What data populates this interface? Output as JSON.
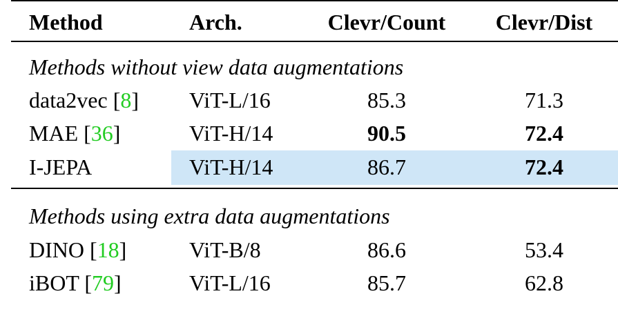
{
  "table": {
    "header": [
      "Method",
      "Arch.",
      "Clevr/Count",
      "Clevr/Dist"
    ],
    "sections": [
      {
        "title": "Methods without view data augmentations",
        "rows": [
          {
            "method": "data2vec",
            "ref": 8,
            "arch": "ViT-L/16",
            "count": 85.3,
            "dist": 71.3
          },
          {
            "method": "MAE",
            "ref": 36,
            "arch": "ViT-H/14",
            "count": 90.5,
            "dist": 72.4
          },
          {
            "method": "I-JEPA",
            "arch": "ViT-H/14",
            "count": 86.7,
            "dist": 72.4
          }
        ]
      },
      {
        "title": "Methods using extra data augmentations",
        "rows": [
          {
            "method": "DINO",
            "ref": 18,
            "arch": "ViT-B/8",
            "count": 86.6,
            "dist": 53.4
          },
          {
            "method": "iBOT",
            "ref": 79,
            "arch": "ViT-L/16",
            "count": 85.7,
            "dist": 62.8
          }
        ]
      }
    ]
  }
}
